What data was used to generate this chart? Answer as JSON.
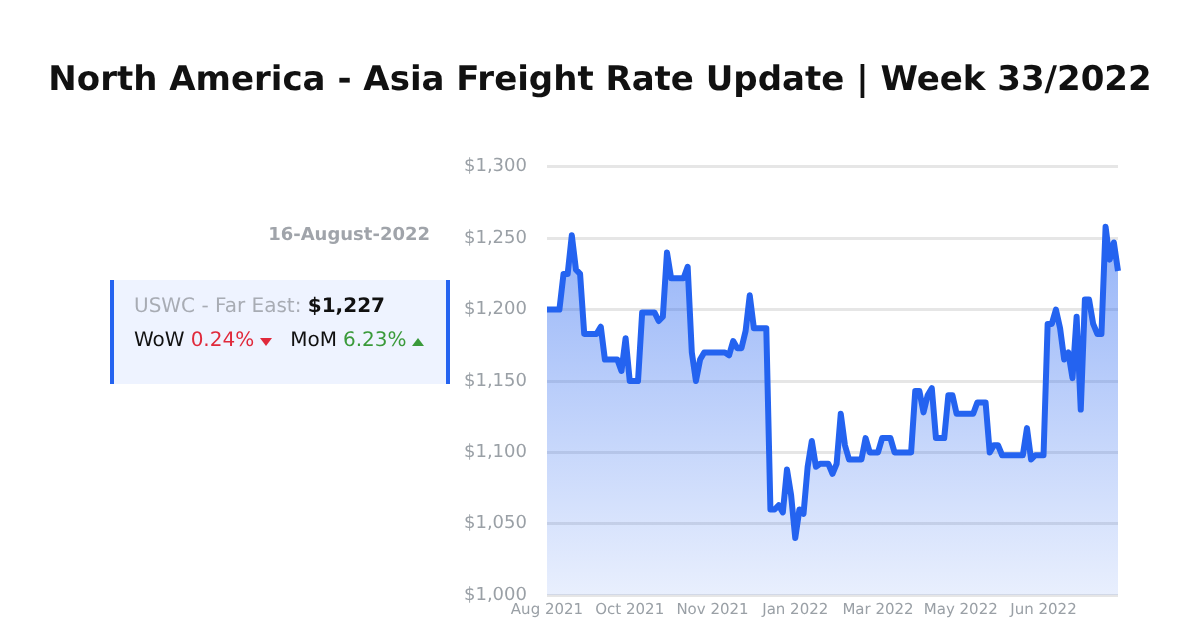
{
  "chart_data": {
    "type": "area",
    "title": "North America - Asia Freight Rate Update | Week 33/2022",
    "annotations": [
      "16-August-2022",
      "USWC - Far East:",
      "$1,227",
      "WoW",
      "0.24%",
      "MoM",
      "6.23%"
    ],
    "categories": [
      "Aug 2021",
      null,
      null,
      null,
      null,
      null,
      null,
      null,
      null,
      null,
      null,
      null,
      null,
      null,
      null,
      null,
      null,
      null,
      null,
      null,
      "Oct 2021",
      null,
      null,
      null,
      null,
      null,
      null,
      null,
      null,
      null,
      null,
      null,
      null,
      null,
      null,
      null,
      null,
      null,
      null,
      null,
      "Nov 2021",
      null,
      null,
      null,
      null,
      null,
      null,
      null,
      null,
      null,
      null,
      null,
      null,
      null,
      null,
      null,
      null,
      null,
      null,
      null,
      "Jan 2022",
      null,
      null,
      null,
      null,
      null,
      null,
      null,
      null,
      null,
      null,
      null,
      null,
      null,
      null,
      null,
      null,
      null,
      null,
      null,
      "Mar 2022",
      null,
      null,
      null,
      null,
      null,
      null,
      null,
      null,
      null,
      null,
      null,
      null,
      null,
      null,
      null,
      null,
      null,
      null,
      null,
      "May 2022",
      null,
      null,
      null,
      null,
      null,
      null,
      null,
      null,
      null,
      null,
      null,
      null,
      null,
      null,
      null,
      null,
      null,
      null,
      null,
      "Jun 2022",
      null,
      null,
      null,
      null,
      null,
      null,
      null,
      null,
      null,
      null,
      null,
      null,
      null,
      null,
      null,
      null,
      null,
      null
    ],
    "series": [
      {
        "color": "#2463f0",
        "values": [
          1200,
          1200,
          1200,
          1200,
          1225,
          1225,
          1252,
          1228,
          1225,
          1183,
          1183,
          1183,
          1183,
          1188,
          1165,
          1165,
          1165,
          1165,
          1157,
          1180,
          1150,
          1150,
          1150,
          1198,
          1198,
          1198,
          1198,
          1192,
          1195,
          1240,
          1222,
          1222,
          1222,
          1222,
          1230,
          1170,
          1150,
          1165,
          1170,
          1170,
          1170,
          1170,
          1170,
          1170,
          1168,
          1178,
          1173,
          1173,
          1185,
          1210,
          1187,
          1187,
          1187,
          1187,
          1060,
          1060,
          1063,
          1058,
          1088,
          1070,
          1040,
          1060,
          1057,
          1090,
          1108,
          1090,
          1092,
          1092,
          1092,
          1085,
          1092,
          1127,
          1105,
          1095,
          1095,
          1095,
          1095,
          1110,
          1100,
          1100,
          1100,
          1110,
          1110,
          1110,
          1100,
          1100,
          1100,
          1100,
          1100,
          1143,
          1143,
          1128,
          1140,
          1145,
          1110,
          1110,
          1110,
          1140,
          1140,
          1127,
          1127,
          1127,
          1127,
          1127,
          1135,
          1135,
          1135,
          1100,
          1105,
          1105,
          1098,
          1098,
          1098,
          1098,
          1098,
          1098,
          1117,
          1095,
          1098,
          1098,
          1098,
          1190,
          1190,
          1200,
          1187,
          1165,
          1170,
          1152,
          1195,
          1130,
          1207,
          1207,
          1190,
          1183,
          1183,
          1258,
          1235,
          1247,
          1227
        ]
      }
    ],
    "ylim": [
      1000,
      1300
    ],
    "yticks": [
      {
        "value": 1000,
        "label": "$1,000"
      },
      {
        "value": 1050,
        "label": "$1,050"
      },
      {
        "value": 1100,
        "label": "$1,100"
      },
      {
        "value": 1150,
        "label": "$1,150"
      },
      {
        "value": 1200,
        "label": "$1,200"
      },
      {
        "value": 1250,
        "label": "$1,250"
      },
      {
        "value": 1300,
        "label": "$1,300"
      }
    ],
    "grid": "y",
    "legend": false,
    "marker": "none",
    "line_style": "solid"
  }
}
